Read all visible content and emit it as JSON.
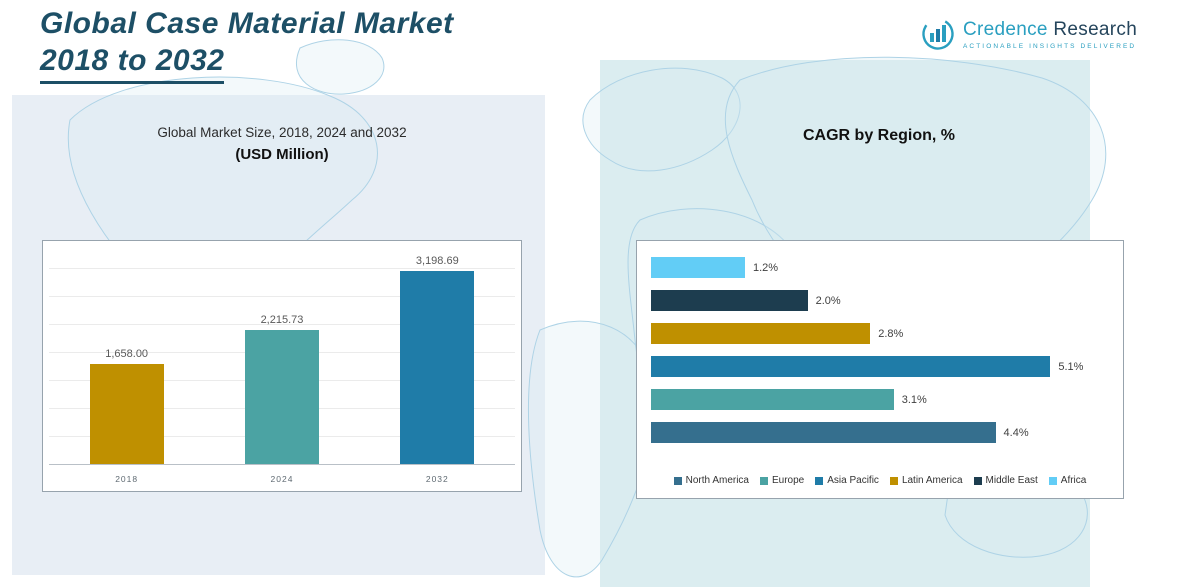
{
  "header": {
    "title_line1": "Global Case Material Market",
    "title_line2": "2018 to 2032"
  },
  "logo": {
    "brand_part1": "Credence",
    "brand_part2": " Research",
    "tagline": "Actionable Insights Delivered",
    "accent_color": "#2a9fc0"
  },
  "left_chart": {
    "subtitle": "Global Market Size, 2018, 2024 and 2032",
    "unit_label": "(USD Million)"
  },
  "right_chart": {
    "title": "CAGR by Region, %"
  },
  "chart_data": [
    {
      "type": "bar",
      "title": "Global Market Size, 2018, 2024 and 2032 (USD Million)",
      "categories": [
        "2018",
        "2024",
        "2032"
      ],
      "values": [
        1658.0,
        2215.73,
        3198.69
      ],
      "value_labels": [
        "1,658.00",
        "2,215.73",
        "3,198.69"
      ],
      "colors": [
        "#bf9000",
        "#4ba3a3",
        "#1f7ca8"
      ],
      "xlabel": "",
      "ylabel": "",
      "ylim": [
        0,
        3500
      ],
      "grid": true,
      "legend_position": "none"
    },
    {
      "type": "bar",
      "orientation": "horizontal",
      "title": "CAGR by Region, %",
      "xlim": [
        0,
        5.9
      ],
      "grid": false,
      "legend_position": "bottom",
      "rows_top_to_bottom": [
        {
          "region": "Africa",
          "value": 1.2,
          "label": "1.2%",
          "color": "#62cdf6"
        },
        {
          "region": "Middle East",
          "value": 2.0,
          "label": "2.0%",
          "color": "#1d3d4f"
        },
        {
          "region": "Latin America",
          "value": 2.8,
          "label": "2.8%",
          "color": "#bf9000"
        },
        {
          "region": "Asia Pacific",
          "value": 5.1,
          "label": "5.1%",
          "color": "#1f7ca8"
        },
        {
          "region": "Europe",
          "value": 3.1,
          "label": "3.1%",
          "color": "#4ba3a3"
        },
        {
          "region": "North America",
          "value": 4.4,
          "label": "4.4%",
          "color": "#356f8e"
        }
      ],
      "legend": [
        {
          "label": "North America",
          "color": "#356f8e"
        },
        {
          "label": "Europe",
          "color": "#4ba3a3"
        },
        {
          "label": "Asia Pacific",
          "color": "#1f7ca8"
        },
        {
          "label": "Latin America",
          "color": "#bf9000"
        },
        {
          "label": "Middle East",
          "color": "#1d3d4f"
        },
        {
          "label": "Africa",
          "color": "#62cdf6"
        }
      ]
    }
  ]
}
